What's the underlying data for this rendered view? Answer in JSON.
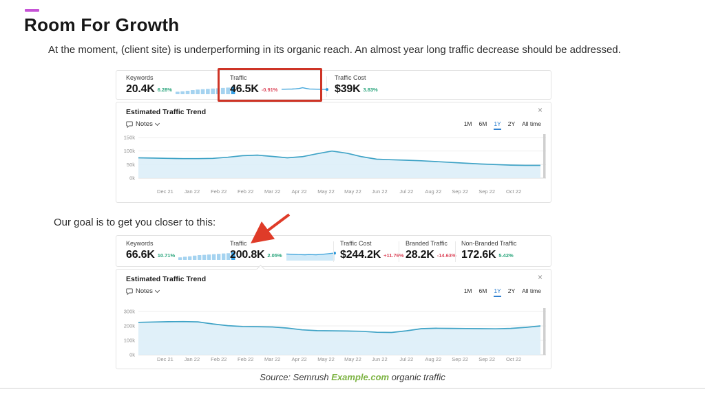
{
  "colors": {
    "accent": "#c653d6",
    "positive": "#2aa57c",
    "negative": "#dd4b5e",
    "chart_line": "#3fa3c6",
    "chart_fill": "#ddeef8",
    "spark_line": "#45a7dc",
    "spark_fill": "#cfe9f8",
    "spark_dot": "#2b96d9",
    "bar": "#a5d3f0",
    "bar_last": "#38a1e6",
    "highlight_red": "#ce3426",
    "arrow_red": "#df3b28",
    "link_green": "#7cb342",
    "range_selected": "#2f80d0"
  },
  "slide": {
    "title": "Room For Growth",
    "intro": "At the moment, (client site) is underperforming in its organic reach. An almost year long traffic decrease should be addressed.",
    "goal_text": "Our goal is to get you closer to this:",
    "source_prefix": "Source: Semrush ",
    "source_link": "Example.com",
    "source_suffix": " organic traffic"
  },
  "panel": {
    "title": "Estimated Traffic Trend",
    "notes_label": "Notes",
    "close_glyph": "×",
    "ranges": [
      "1M",
      "6M",
      "1Y",
      "2Y",
      "All time"
    ],
    "selected_range": "1Y"
  },
  "current": {
    "metrics": [
      {
        "label": "Keywords",
        "value": "20.4K",
        "change": "6.28%",
        "trend": "positive",
        "bars": [
          30,
          36,
          42,
          50,
          56,
          60,
          64,
          68,
          72,
          76,
          80,
          92
        ]
      },
      {
        "label": "Traffic",
        "value": "46.5K",
        "change": "-0.91%",
        "trend": "negative",
        "highlighted": true,
        "spark": [
          56,
          57,
          58,
          59,
          62,
          66,
          76,
          67,
          60,
          58,
          57,
          56,
          55,
          54
        ]
      },
      {
        "label": "Traffic Cost",
        "value": "$39K",
        "change": "3.83%",
        "trend": "positive"
      }
    ]
  },
  "goal": {
    "metrics": [
      {
        "label": "Keywords",
        "value": "66.6K",
        "change": "10.71%",
        "trend": "positive",
        "bars": [
          32,
          38,
          44,
          52,
          58,
          62,
          66,
          70,
          74,
          78,
          82,
          94
        ]
      },
      {
        "label": "Traffic",
        "value": "200.8K",
        "change": "2.05%",
        "trend": "positive",
        "spark_fill": true,
        "spark": [
          66,
          64,
          62,
          60,
          59,
          58,
          60,
          59,
          58,
          61,
          64,
          68,
          72,
          76
        ]
      },
      {
        "label": "Traffic Cost",
        "value": "$244.2K",
        "change": "+11.76%",
        "trend": "negative"
      },
      {
        "label": "Branded Traffic",
        "value": "28.2K",
        "change": "-14.63%",
        "trend": "negative"
      },
      {
        "label": "Non-Branded Traffic",
        "value": "172.6K",
        "change": "5.42%",
        "trend": "positive"
      }
    ]
  },
  "chart_data": [
    {
      "type": "area",
      "title": "Estimated Traffic Trend",
      "unit": "organic visits per month, thousands",
      "x_ticks": [
        "Dec 21",
        "Jan 22",
        "Feb 22",
        "Feb 22",
        "Mar 22",
        "Apr 22",
        "May 22",
        "May 22",
        "Jun 22",
        "Jul 22",
        "Aug 22",
        "Sep 22",
        "Sep 22",
        "Oct 22"
      ],
      "values_k": [
        75,
        74,
        73,
        72,
        72,
        73,
        77,
        83,
        85,
        80,
        75,
        79,
        90,
        100,
        92,
        79,
        70,
        68,
        66,
        64,
        61,
        58,
        55,
        52,
        50,
        48,
        47,
        47
      ],
      "ylim_k": [
        0,
        160
      ],
      "yticks": [
        {
          "v": 150,
          "label": "150k"
        },
        {
          "v": 100,
          "label": "100k"
        },
        {
          "v": 50,
          "label": "50k"
        },
        {
          "v": 0,
          "label": "0k"
        }
      ],
      "grid": true,
      "legend": false
    },
    {
      "type": "area",
      "title": "Estimated Traffic Trend",
      "unit": "organic visits per month, thousands",
      "x_ticks": [
        "Dec 21",
        "Jan 22",
        "Feb 22",
        "Feb 22",
        "Mar 22",
        "Apr 22",
        "May 22",
        "May 22",
        "Jun 22",
        "Jul 22",
        "Aug 22",
        "Sep 22",
        "Sep 22",
        "Oct 22"
      ],
      "values_k": [
        225,
        227,
        229,
        230,
        228,
        214,
        202,
        196,
        195,
        193,
        185,
        173,
        167,
        166,
        165,
        163,
        156,
        155,
        166,
        181,
        184,
        183,
        182,
        181,
        180,
        183,
        190,
        200
      ],
      "ylim_k": [
        0,
        320
      ],
      "yticks": [
        {
          "v": 300,
          "label": "300k"
        },
        {
          "v": 200,
          "label": "200k"
        },
        {
          "v": 100,
          "label": "100k"
        },
        {
          "v": 0,
          "label": "0k"
        }
      ],
      "grid": true,
      "legend": false
    }
  ]
}
